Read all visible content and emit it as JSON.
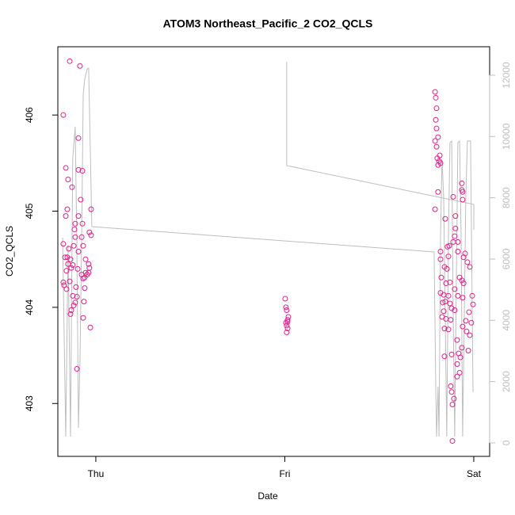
{
  "chart_data": {
    "type": "scatter",
    "title": "ATOM3 Northeast_Pacific_2 CO2_QCLS",
    "xlabel": "Date",
    "ylabel": "CO2_QCLS",
    "xlim": [
      -0.201,
      2.084
    ],
    "xticks": [
      {
        "value": 0,
        "label": "Thu"
      },
      {
        "value": 1,
        "label": "Fri"
      },
      {
        "value": 2,
        "label": "Sat"
      }
    ],
    "ylim": [
      402.45,
      406.71
    ],
    "yticks": [
      403,
      404,
      405,
      406
    ],
    "y2lim": [
      -440,
      12930
    ],
    "y2ticks": [
      0,
      2000,
      4000,
      6000,
      8000,
      10000,
      12000
    ],
    "y2color": "#bebebe",
    "series": [
      {
        "type": "line",
        "axis": "y2",
        "color": "#bebebe",
        "x": [
          -0.176,
          -0.159,
          -0.147,
          -0.134,
          -0.122,
          -0.109,
          -0.101,
          -0.092,
          -0.084,
          -0.075,
          -0.067,
          -0.059,
          -0.046,
          -0.038,
          -0.021,
          1.79,
          1.799,
          1.803,
          1.811,
          1.816,
          1.824,
          1.832,
          1.841,
          1.849,
          1.857,
          1.866,
          1.874,
          1.883,
          1.891,
          1.899,
          1.908,
          1.916,
          1.925,
          1.933,
          1.941,
          1.95,
          1.958,
          1.966,
          1.983,
          1.992,
          1.996,
          null,
          1.01,
          1.01,
          2.0,
          2.0
        ],
        "values": [
          6698,
          207,
          6439,
          207,
          9284,
          10318,
          6698,
          491,
          2612,
          6698,
          11353,
          11870,
          12206,
          12232,
          7060,
          6232,
          1836,
          207,
          1836,
          207,
          6698,
          9284,
          7991,
          4112,
          207,
          6698,
          9801,
          9853,
          4112,
          207,
          5405,
          9801,
          9853,
          6698,
          207,
          4112,
          7991,
          9853,
          9853,
          4112,
          1655,
          null,
          12439,
          9051,
          7784,
          6956
        ]
      },
      {
        "type": "scatter",
        "color": "#e0218a",
        "x": [
          -0.172,
          -0.138,
          -0.084,
          -0.159,
          -0.092,
          -0.092,
          -0.071,
          -0.147,
          -0.126,
          -0.08,
          -0.151,
          -0.025,
          -0.159,
          -0.092,
          -0.109,
          -0.071,
          -0.113,
          -0.034,
          -0.172,
          -0.025,
          -0.109,
          -0.075,
          -0.117,
          -0.143,
          -0.067,
          -0.092,
          -0.163,
          -0.151,
          -0.134,
          -0.054,
          -0.147,
          -0.038,
          -0.13,
          -0.034,
          -0.096,
          -0.054,
          -0.038,
          -0.075,
          -0.059,
          -0.046,
          -0.155,
          -0.122,
          -0.172,
          -0.138,
          -0.067,
          -0.168,
          -0.155,
          -0.105,
          -0.059,
          -0.122,
          -0.1,
          -0.109,
          -0.117,
          -0.063,
          -0.13,
          -0.134,
          -0.067,
          -0.029,
          -0.1,
          1.002,
          1.006,
          1.01,
          1.019,
          1.015,
          1.006,
          1.01,
          1.015,
          1.01,
          1.015,
          1.795,
          1.799,
          1.803,
          1.799,
          1.803,
          1.795,
          1.803,
          1.811,
          1.82,
          1.807,
          1.816,
          1.811,
          1.824,
          1.811,
          1.795,
          1.891,
          1.903,
          1.849,
          1.937,
          1.937,
          1.941,
          1.941,
          1.903,
          1.899,
          1.891,
          1.916,
          1.87,
          1.861,
          1.824,
          1.954,
          1.946,
          1.866,
          1.916,
          1.966,
          1.979,
          1.824,
          1.845,
          1.858,
          1.925,
          1.937,
          1.946,
          1.828,
          1.874,
          1.853,
          1.899,
          1.824,
          1.841,
          1.866,
          1.916,
          1.992,
          1.836,
          1.849,
          1.874,
          1.941,
          1.883,
          1.996,
          1.841,
          1.899,
          1.975,
          1.832,
          1.853,
          1.958,
          1.878,
          1.987,
          1.941,
          1.962,
          1.845,
          1.866,
          1.979,
          1.912,
          1.937,
          1.971,
          1.845,
          1.883,
          1.92,
          1.929,
          1.912,
          1.925,
          1.912,
          1.878,
          1.883,
          1.895,
          1.887,
          1.887
        ],
        "values": [
          406.0,
          406.56,
          406.51,
          405.45,
          405.76,
          405.43,
          405.42,
          405.33,
          405.25,
          405.12,
          405.02,
          405.02,
          404.95,
          404.95,
          404.87,
          404.87,
          404.81,
          404.78,
          404.66,
          404.75,
          404.73,
          404.73,
          404.64,
          404.61,
          404.64,
          404.58,
          404.52,
          404.52,
          404.5,
          404.5,
          404.45,
          404.45,
          404.41,
          404.41,
          404.4,
          404.36,
          404.36,
          404.34,
          404.31,
          404.34,
          404.38,
          404.44,
          404.26,
          404.27,
          404.3,
          404.23,
          404.19,
          404.21,
          404.2,
          404.12,
          404.11,
          404.05,
          404.02,
          404.06,
          403.97,
          403.93,
          403.89,
          403.79,
          403.36,
          404.09,
          404.0,
          403.97,
          403.9,
          403.87,
          403.84,
          403.81,
          403.78,
          403.74,
          403.85,
          406.24,
          406.18,
          406.07,
          405.95,
          405.86,
          405.73,
          405.67,
          405.77,
          405.58,
          405.55,
          405.52,
          405.48,
          405.5,
          405.2,
          405.02,
          405.15,
          404.95,
          404.92,
          405.29,
          405.22,
          405.2,
          405.12,
          404.82,
          404.74,
          404.68,
          404.68,
          404.64,
          404.63,
          404.58,
          404.56,
          404.52,
          404.53,
          404.58,
          404.47,
          404.42,
          404.5,
          404.42,
          404.4,
          404.31,
          404.28,
          404.25,
          404.31,
          404.26,
          404.25,
          404.19,
          404.15,
          404.13,
          404.12,
          404.12,
          404.12,
          404.05,
          404.06,
          404.04,
          404.1,
          403.99,
          404.03,
          403.96,
          403.97,
          403.95,
          403.9,
          403.88,
          403.86,
          403.87,
          403.84,
          403.8,
          403.75,
          403.78,
          403.77,
          403.71,
          403.66,
          403.58,
          403.55,
          403.49,
          403.51,
          403.52,
          403.48,
          403.41,
          403.32,
          403.28,
          403.18,
          403.12,
          403.05,
          402.99,
          402.61
        ]
      }
    ]
  }
}
